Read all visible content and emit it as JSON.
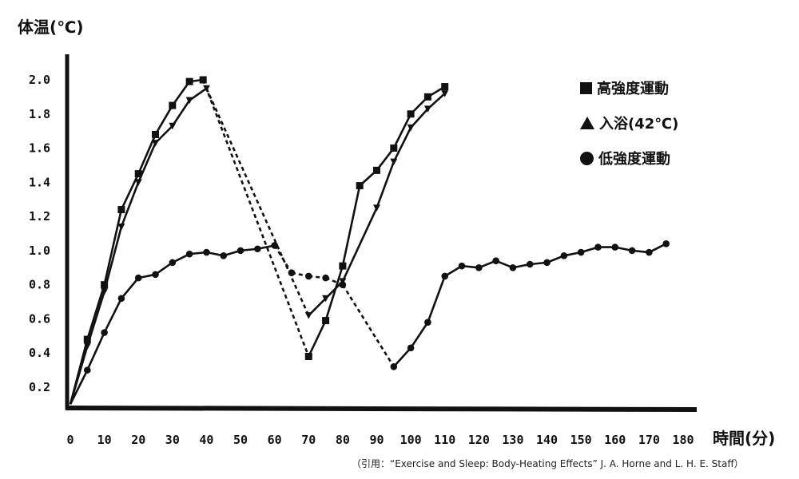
{
  "chart_data": {
    "type": "line",
    "ylabel": "体温(℃)",
    "xlabel": "時間(分)",
    "xlim": [
      0,
      180
    ],
    "ylim": [
      0.1,
      2.1
    ],
    "x_ticks": [
      "0",
      "10",
      "20",
      "30",
      "40",
      "50",
      "60",
      "70",
      "80",
      "90",
      "100",
      "110",
      "120",
      "130",
      "140",
      "150",
      "160",
      "170",
      "180"
    ],
    "y_ticks": [
      "0.2",
      "0.4",
      "0.6",
      "0.8",
      "1.0",
      "1.2",
      "1.4",
      "1.6",
      "1.8",
      "2.0"
    ],
    "legend_position": "top-right",
    "series": [
      {
        "name": "高強度運動",
        "marker": "square",
        "points": [
          [
            0,
            0.1
          ],
          [
            5,
            0.48
          ],
          [
            10,
            0.8
          ],
          [
            15,
            1.24
          ],
          [
            20,
            1.45
          ],
          [
            25,
            1.68
          ],
          [
            30,
            1.85
          ],
          [
            35,
            1.99
          ],
          [
            39,
            2.0
          ],
          [
            70,
            0.38
          ],
          [
            75,
            0.59
          ],
          [
            80,
            0.91
          ],
          [
            85,
            1.38
          ],
          [
            90,
            1.47
          ],
          [
            95,
            1.6
          ],
          [
            100,
            1.8
          ],
          [
            105,
            1.9
          ],
          [
            110,
            1.96
          ]
        ],
        "dashed_segment": [
          39,
          70
        ]
      },
      {
        "name": "入浴(42℃)",
        "marker": "triangle",
        "points": [
          [
            0,
            0.1
          ],
          [
            5,
            0.44
          ],
          [
            10,
            0.76
          ],
          [
            15,
            1.14
          ],
          [
            20,
            1.4
          ],
          [
            25,
            1.63
          ],
          [
            30,
            1.73
          ],
          [
            35,
            1.88
          ],
          [
            40,
            1.95
          ],
          [
            70,
            0.62
          ],
          [
            75,
            0.72
          ],
          [
            80,
            0.82
          ],
          [
            90,
            1.25
          ],
          [
            95,
            1.52
          ],
          [
            100,
            1.72
          ],
          [
            105,
            1.83
          ],
          [
            110,
            1.92
          ]
        ],
        "dashed_segment": [
          40,
          70
        ]
      },
      {
        "name": "低強度運動",
        "marker": "circle",
        "points": [
          [
            0,
            0.1
          ],
          [
            5,
            0.3
          ],
          [
            10,
            0.52
          ],
          [
            15,
            0.72
          ],
          [
            20,
            0.84
          ],
          [
            25,
            0.86
          ],
          [
            30,
            0.93
          ],
          [
            35,
            0.98
          ],
          [
            40,
            0.99
          ],
          [
            45,
            0.97
          ],
          [
            50,
            1.0
          ],
          [
            55,
            1.01
          ],
          [
            60,
            1.03
          ],
          [
            65,
            0.87
          ],
          [
            70,
            0.85
          ],
          [
            75,
            0.84
          ],
          [
            80,
            0.8
          ],
          [
            95,
            0.32
          ],
          [
            100,
            0.43
          ],
          [
            105,
            0.58
          ],
          [
            110,
            0.85
          ],
          [
            115,
            0.91
          ],
          [
            120,
            0.9
          ],
          [
            125,
            0.94
          ],
          [
            130,
            0.9
          ],
          [
            135,
            0.92
          ],
          [
            140,
            0.93
          ],
          [
            145,
            0.97
          ],
          [
            150,
            0.99
          ],
          [
            155,
            1.02
          ],
          [
            160,
            1.02
          ],
          [
            165,
            1.0
          ],
          [
            170,
            0.99
          ],
          [
            175,
            1.04
          ]
        ],
        "dashed_segment": [
          60,
          95
        ]
      }
    ]
  },
  "citation": "（引用：“Exercise and Sleep: Body-Heating Effects” J. A. Horne and L. H. E. Staff）"
}
